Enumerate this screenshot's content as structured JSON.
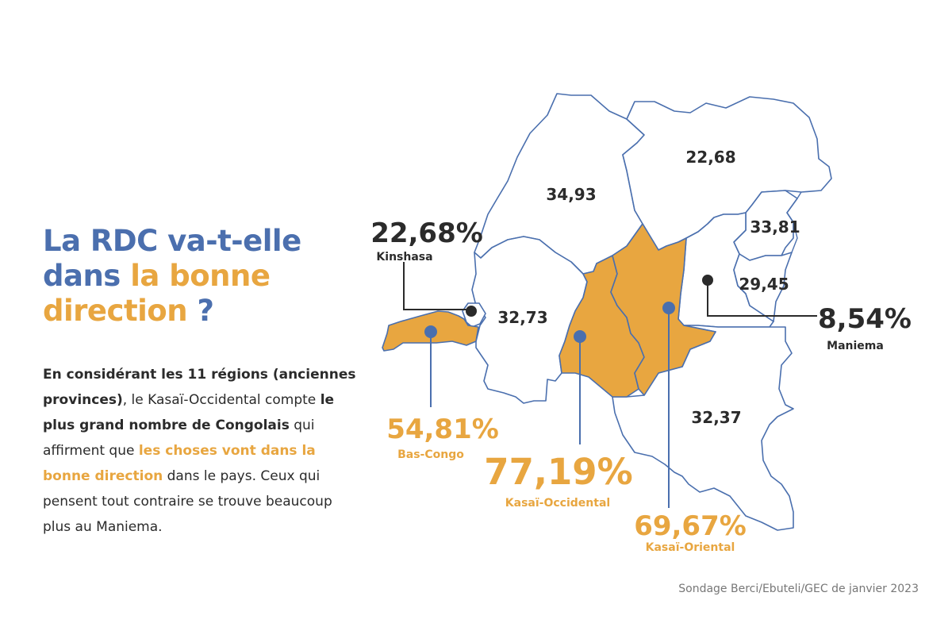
{
  "title": {
    "part1": "La RDC va-t-elle",
    "part2": "dans",
    "part3": "la bonne",
    "part4": "direction",
    "part5": "?"
  },
  "description": {
    "s1": "En considérant les 11 régions (anciennes provinces)",
    "s2": ", le Kasaï-Occidental compte ",
    "s3": "le plus grand nombre de Congolais",
    "s4": " qui affirment que ",
    "s5": "les choses vont dans la bonne direction",
    "s6": " dans le pays.  Ceux qui pensent tout contraire se trouve beaucoup plus au Maniema."
  },
  "source": "Sondage Berci/Ebuteli/GEC de janvier 2023",
  "colors": {
    "blue": "#4b6fae",
    "orange": "#e8a640",
    "dark": "#2b2b2b",
    "outline": "#4a6fae"
  },
  "regions": {
    "equateur": {
      "value": "34,93"
    },
    "orientale": {
      "value": "22,68"
    },
    "nord_kivu": {
      "value": "33,81"
    },
    "sud_kivu": {
      "value": "29,45"
    },
    "bandundu": {
      "value": "32,73"
    },
    "katanga": {
      "value": "32,37"
    }
  },
  "callouts": {
    "kinshasa": {
      "value": "22,68%",
      "name": "Kinshasa"
    },
    "bas_congo": {
      "value": "54,81%",
      "name": "Bas-Congo"
    },
    "kasai_occidental": {
      "value": "77,19%",
      "name": "Kasaï-Occidental"
    },
    "kasai_oriental": {
      "value": "69,67%",
      "name": "Kasaï-Oriental"
    },
    "maniema": {
      "value": "8,54%",
      "name": "Maniema"
    }
  }
}
